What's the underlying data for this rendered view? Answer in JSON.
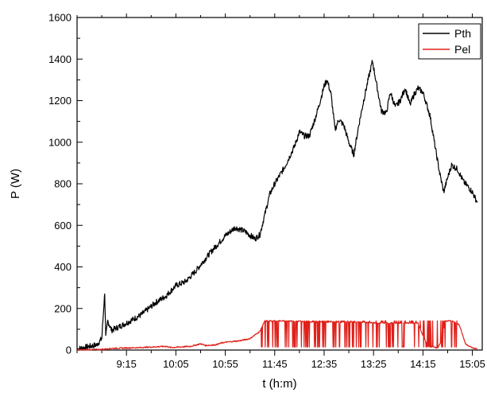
{
  "chart_data": {
    "type": "line",
    "xlabel": "t (h:m)",
    "ylabel": "P (W)",
    "x_unit": "h:m",
    "xlim": [
      "8:25",
      "15:15"
    ],
    "ylim": [
      0,
      1600
    ],
    "yticks": [
      0,
      200,
      400,
      600,
      800,
      1000,
      1200,
      1400,
      1600
    ],
    "xticks": [
      "9:15",
      "10:05",
      "10:55",
      "11:45",
      "12:35",
      "13:25",
      "14:15",
      "15:05"
    ],
    "grid": false,
    "legend_position": "top-right",
    "series": [
      {
        "name": "Pth",
        "color": "#000000",
        "points": [
          [
            "8:25",
            5
          ],
          [
            "8:35",
            15
          ],
          [
            "8:45",
            25
          ],
          [
            "8:50",
            55
          ],
          [
            "8:53",
            280
          ],
          [
            "8:54",
            60
          ],
          [
            "8:56",
            140
          ],
          [
            "9:00",
            95
          ],
          [
            "9:15",
            130
          ],
          [
            "9:30",
            170
          ],
          [
            "9:45",
            230
          ],
          [
            "9:55",
            260
          ],
          [
            "10:05",
            310
          ],
          [
            "10:15",
            330
          ],
          [
            "10:25",
            380
          ],
          [
            "10:40",
            470
          ],
          [
            "10:55",
            550
          ],
          [
            "11:05",
            590
          ],
          [
            "11:15",
            570
          ],
          [
            "11:25",
            535
          ],
          [
            "11:30",
            555
          ],
          [
            "11:40",
            750
          ],
          [
            "11:45",
            800
          ],
          [
            "11:55",
            880
          ],
          [
            "12:05",
            980
          ],
          [
            "12:10",
            1050
          ],
          [
            "12:15",
            1030
          ],
          [
            "12:20",
            1030
          ],
          [
            "12:25",
            1100
          ],
          [
            "12:30",
            1180
          ],
          [
            "12:35",
            1270
          ],
          [
            "12:38",
            1300
          ],
          [
            "12:42",
            1230
          ],
          [
            "12:46",
            1060
          ],
          [
            "12:50",
            1110
          ],
          [
            "12:55",
            1080
          ],
          [
            "13:00",
            1000
          ],
          [
            "13:05",
            940
          ],
          [
            "13:10",
            1080
          ],
          [
            "13:15",
            1200
          ],
          [
            "13:20",
            1310
          ],
          [
            "13:24",
            1390
          ],
          [
            "13:28",
            1280
          ],
          [
            "13:33",
            1150
          ],
          [
            "13:38",
            1140
          ],
          [
            "13:42",
            1240
          ],
          [
            "13:47",
            1170
          ],
          [
            "13:52",
            1200
          ],
          [
            "13:57",
            1260
          ],
          [
            "14:02",
            1180
          ],
          [
            "14:06",
            1230
          ],
          [
            "14:10",
            1260
          ],
          [
            "14:15",
            1240
          ],
          [
            "14:22",
            1130
          ],
          [
            "14:28",
            960
          ],
          [
            "14:32",
            850
          ],
          [
            "14:36",
            760
          ],
          [
            "14:40",
            830
          ],
          [
            "14:44",
            890
          ],
          [
            "14:50",
            870
          ],
          [
            "14:56",
            810
          ],
          [
            "15:00",
            790
          ],
          [
            "15:05",
            760
          ],
          [
            "15:10",
            710
          ]
        ]
      },
      {
        "name": "Pel",
        "color": "#e0201a",
        "points": [
          [
            "8:25",
            0
          ],
          [
            "8:50",
            3
          ],
          [
            "9:00",
            8
          ],
          [
            "9:30",
            12
          ],
          [
            "9:55",
            18
          ],
          [
            "10:00",
            12
          ],
          [
            "10:20",
            18
          ],
          [
            "10:30",
            30
          ],
          [
            "10:35",
            22
          ],
          [
            "10:45",
            25
          ],
          [
            "10:52",
            35
          ],
          [
            "11:00",
            40
          ],
          [
            "11:10",
            45
          ],
          [
            "11:20",
            55
          ],
          [
            "11:30",
            90
          ],
          [
            "11:35",
            140
          ],
          [
            "11:45",
            140
          ],
          [
            "12:00",
            140
          ],
          [
            "12:30",
            135
          ],
          [
            "12:50",
            135
          ],
          [
            "13:10",
            135
          ],
          [
            "13:30",
            130
          ],
          [
            "13:50",
            130
          ],
          [
            "14:10",
            130
          ],
          [
            "14:15",
            70
          ],
          [
            "14:20",
            20
          ],
          [
            "14:30",
            10
          ],
          [
            "14:35",
            60
          ],
          [
            "14:37",
            140
          ],
          [
            "14:45",
            140
          ],
          [
            "14:52",
            120
          ],
          [
            "14:58",
            30
          ],
          [
            "15:05",
            10
          ],
          [
            "15:10",
            5
          ]
        ]
      }
    ]
  }
}
